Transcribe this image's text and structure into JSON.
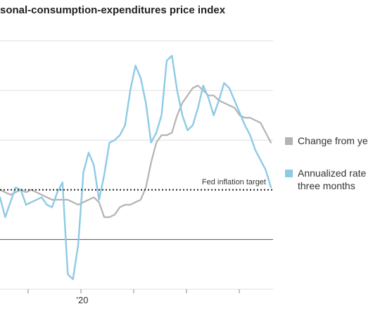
{
  "title": "sonal-consumption-expenditures price index",
  "colors": {
    "annualized": "#8ecae6",
    "yoy": "#b3b3b3",
    "grid": "#e0e0e0",
    "baseline": "#555555",
    "target": "#222222"
  },
  "legend": {
    "yoy": "Change from ye",
    "annualized_line1": "Annualized rate",
    "annualized_line2": "three months"
  },
  "chart_data": {
    "type": "line",
    "title": "sonal-consumption-expenditures price index",
    "x_tick_labels": [
      "'20"
    ],
    "y_range_note": "gridlines at -2, 0, 2, 4, 6, 8 (unlabeled in crop)",
    "ylim": [
      -2,
      8
    ],
    "grid": true,
    "legend_position": "right",
    "annotations": [
      {
        "text": "Fed inflation target",
        "y": 2
      }
    ],
    "series": [
      {
        "name": "Change from ye",
        "x": [
          0,
          1,
          2,
          3,
          4,
          5,
          6,
          7,
          8,
          9,
          10,
          11,
          12,
          13,
          14,
          15,
          16,
          17,
          18,
          19,
          20,
          21,
          22,
          23,
          24,
          25,
          26,
          27,
          28,
          29,
          30,
          31,
          32,
          33,
          34,
          35,
          36,
          37,
          38,
          39,
          40,
          41,
          42,
          43,
          44,
          45,
          46,
          47,
          48,
          49,
          50,
          51,
          52
        ],
        "values": [
          2.0,
          1.9,
          1.8,
          1.9,
          2.0,
          1.9,
          2.0,
          1.9,
          1.8,
          1.7,
          1.6,
          1.6,
          1.6,
          1.6,
          1.5,
          1.4,
          1.5,
          1.6,
          1.7,
          1.5,
          0.9,
          0.9,
          1.0,
          1.3,
          1.4,
          1.4,
          1.5,
          1.6,
          2.1,
          3.1,
          3.9,
          4.2,
          4.2,
          4.3,
          5.0,
          5.5,
          5.8,
          6.1,
          6.2,
          6.0,
          5.8,
          5.8,
          5.6,
          5.5,
          5.4,
          5.3,
          5.0,
          4.9,
          4.9,
          4.8,
          4.7,
          4.3,
          3.9
        ],
        "note": "approximate monthly readings, start to end"
      },
      {
        "name": "Annualized rate three months",
        "x": [
          0,
          1,
          2,
          3,
          4,
          5,
          6,
          7,
          8,
          9,
          10,
          11,
          12,
          13,
          14,
          15,
          16,
          17,
          18,
          19,
          20,
          21,
          22,
          23,
          24,
          25,
          26,
          27,
          28,
          29,
          30,
          31,
          32,
          33,
          34,
          35,
          36,
          37,
          38,
          39,
          40,
          41,
          42,
          43,
          44,
          45,
          46,
          47,
          48,
          49,
          50,
          51,
          52
        ],
        "values": [
          1.7,
          0.9,
          1.5,
          2.1,
          2.0,
          1.4,
          1.5,
          1.6,
          1.7,
          1.4,
          1.3,
          1.9,
          2.3,
          -1.4,
          -1.6,
          -0.2,
          2.7,
          3.5,
          3.0,
          1.6,
          2.6,
          3.9,
          4.0,
          4.2,
          4.6,
          6.0,
          7.0,
          6.5,
          5.5,
          3.9,
          4.3,
          5.0,
          7.2,
          7.4,
          6.0,
          5.0,
          4.4,
          4.6,
          5.3,
          6.2,
          5.7,
          5.0,
          5.6,
          6.3,
          6.1,
          5.6,
          5.1,
          4.6,
          4.2,
          3.6,
          3.2,
          2.8,
          2.1
        ],
        "note": "approximate monthly readings, start to end"
      }
    ]
  }
}
